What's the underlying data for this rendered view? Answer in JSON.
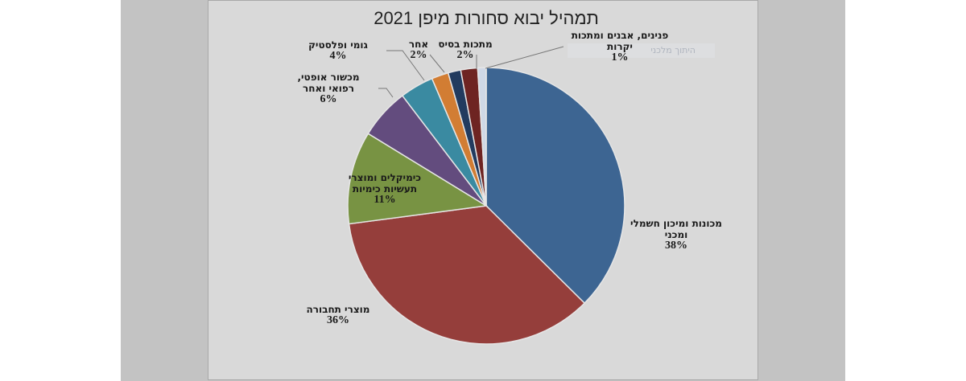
{
  "chart_data": {
    "type": "pie",
    "title": "תמהיל יבוא סחורות מיפן 2021",
    "categories": [
      "מכונות ומיכון חשמלי ומכני",
      "מוצרי תחבורה",
      "כימיקלים ומוצרי תעשיות כימיות",
      "מכשור אופטי, רפואי ואחר",
      "גומי ופלסטיק",
      "אחר",
      null,
      "מתכות בסיס",
      "פנינים, אבנים ומתכות יקרות"
    ],
    "values": [
      38,
      36,
      11,
      6,
      4,
      2,
      1.5,
      2,
      1
    ],
    "value_labels": [
      "38%",
      "36%",
      "11%",
      "6%",
      "4%",
      "2%",
      null,
      "2%",
      "1%"
    ],
    "colors": [
      "#3d6592",
      "#953e3b",
      "#789343",
      "#634c7e",
      "#3a8aa1",
      "#d27d33",
      "#223b5f",
      "#6e2422",
      "#cfd8e6"
    ],
    "ghost_label": "היתוך מלכני"
  }
}
